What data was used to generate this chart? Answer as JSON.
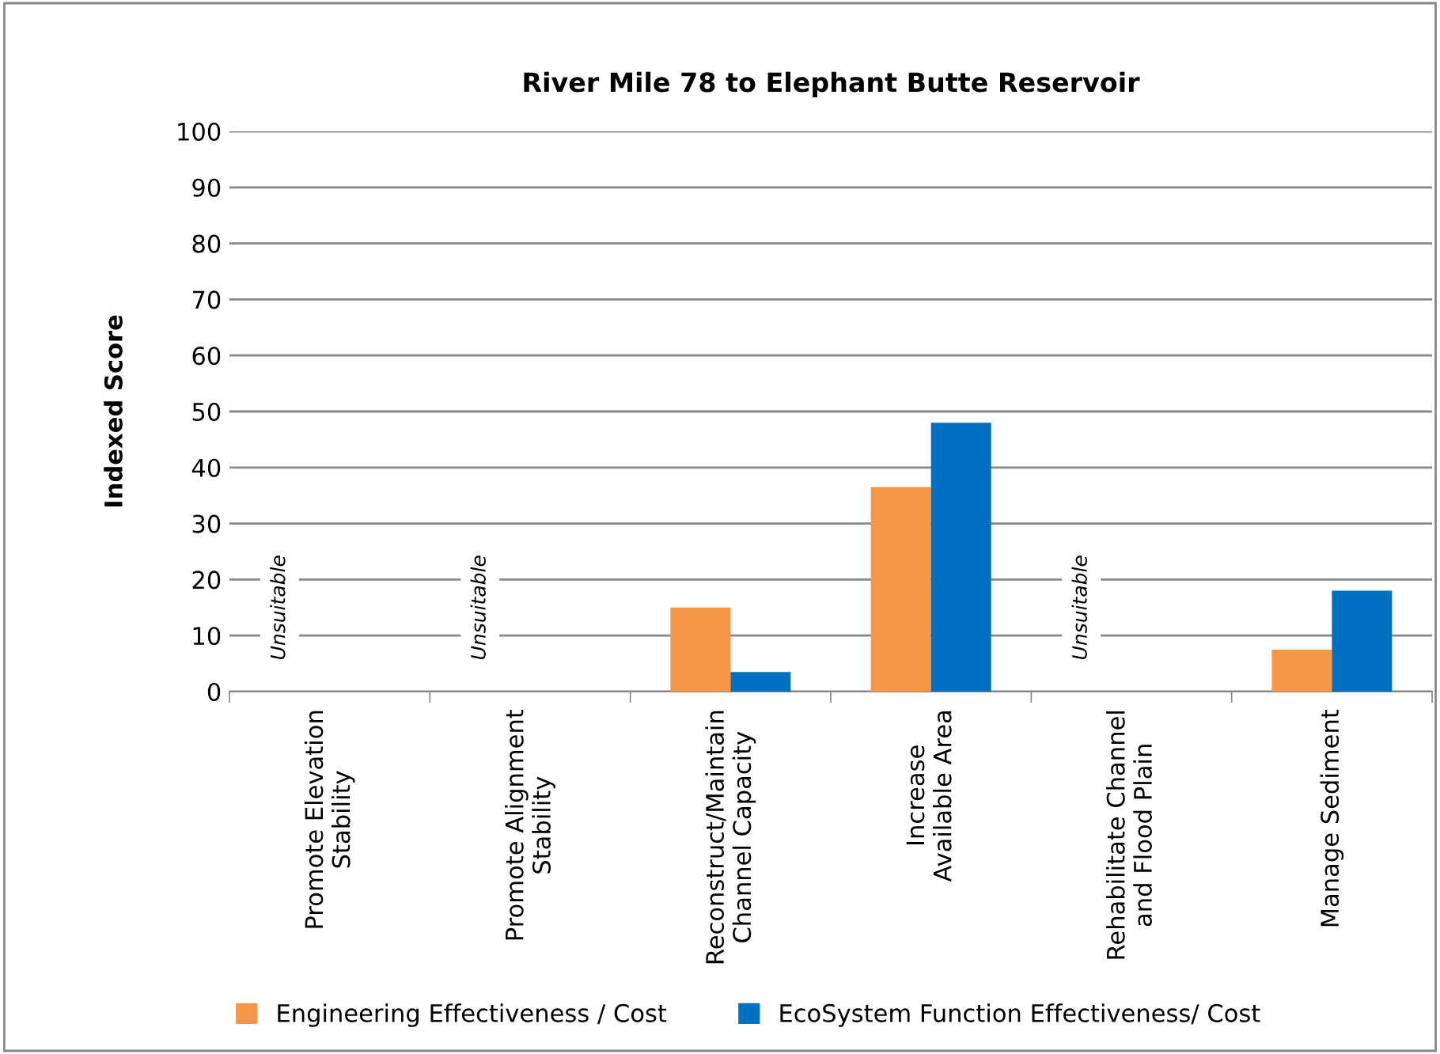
{
  "chart_data": {
    "type": "bar",
    "title": "River Mile 78 to Elephant Butte Reservoir",
    "ylabel": "Indexed Score",
    "categories": [
      "Promote Elevation\nStability",
      "Promote Alignment\nStability",
      "Reconstruct/Maintain\nChannel Capacity",
      "Increase\nAvailable Area",
      "Rehabilitate Channel\nand Flood Plain",
      "Manage Sediment"
    ],
    "series": [
      {
        "name": "Engineering Effectiveness / Cost",
        "color": "#f79646",
        "values": [
          null,
          null,
          15,
          36.5,
          null,
          7.5
        ]
      },
      {
        "name": "EcoSystem Function Effectiveness/ Cost",
        "color": "#0070c0",
        "values": [
          null,
          null,
          3.5,
          48,
          null,
          18
        ]
      }
    ],
    "ylim": [
      0,
      100
    ],
    "yticks": [
      0,
      10,
      20,
      30,
      40,
      50,
      60,
      70,
      80,
      90,
      100
    ],
    "grid": "y",
    "legend": "bottom",
    "annotations": [
      "Unsuitable",
      "Unsuitable",
      "Unsuitable"
    ]
  }
}
